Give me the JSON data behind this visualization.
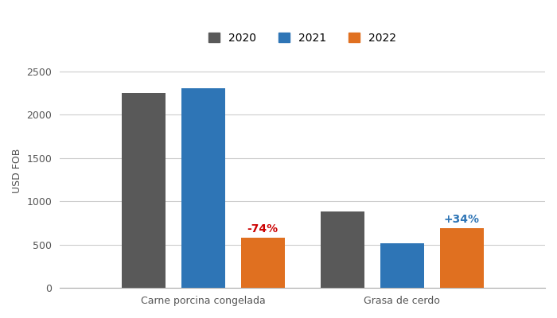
{
  "categories": [
    "Carne porcina congelada",
    "Grasa de cerdo"
  ],
  "years": [
    "2020",
    "2021",
    "2022"
  ],
  "values": {
    "Carne porcina congelada": [
      2250,
      2310,
      580
    ],
    "Grasa de cerdo": [
      880,
      520,
      690
    ]
  },
  "bar_colors": [
    "#595959",
    "#2E75B6",
    "#E07020"
  ],
  "ylabel": "USD FOB",
  "ylim": [
    0,
    2700
  ],
  "yticks": [
    0,
    500,
    1000,
    1500,
    2000,
    2500
  ],
  "annotations": [
    {
      "text": "-74%",
      "color": "#CC0000",
      "category": "Carne porcina congelada",
      "year_idx": 2
    },
    {
      "text": "+34%",
      "color": "#2E75B6",
      "category": "Grasa de cerdo",
      "year_idx": 2
    }
  ],
  "background_color": "#FFFFFF",
  "grid_color": "#CCCCCC",
  "legend_fontsize": 10,
  "axis_fontsize": 9
}
